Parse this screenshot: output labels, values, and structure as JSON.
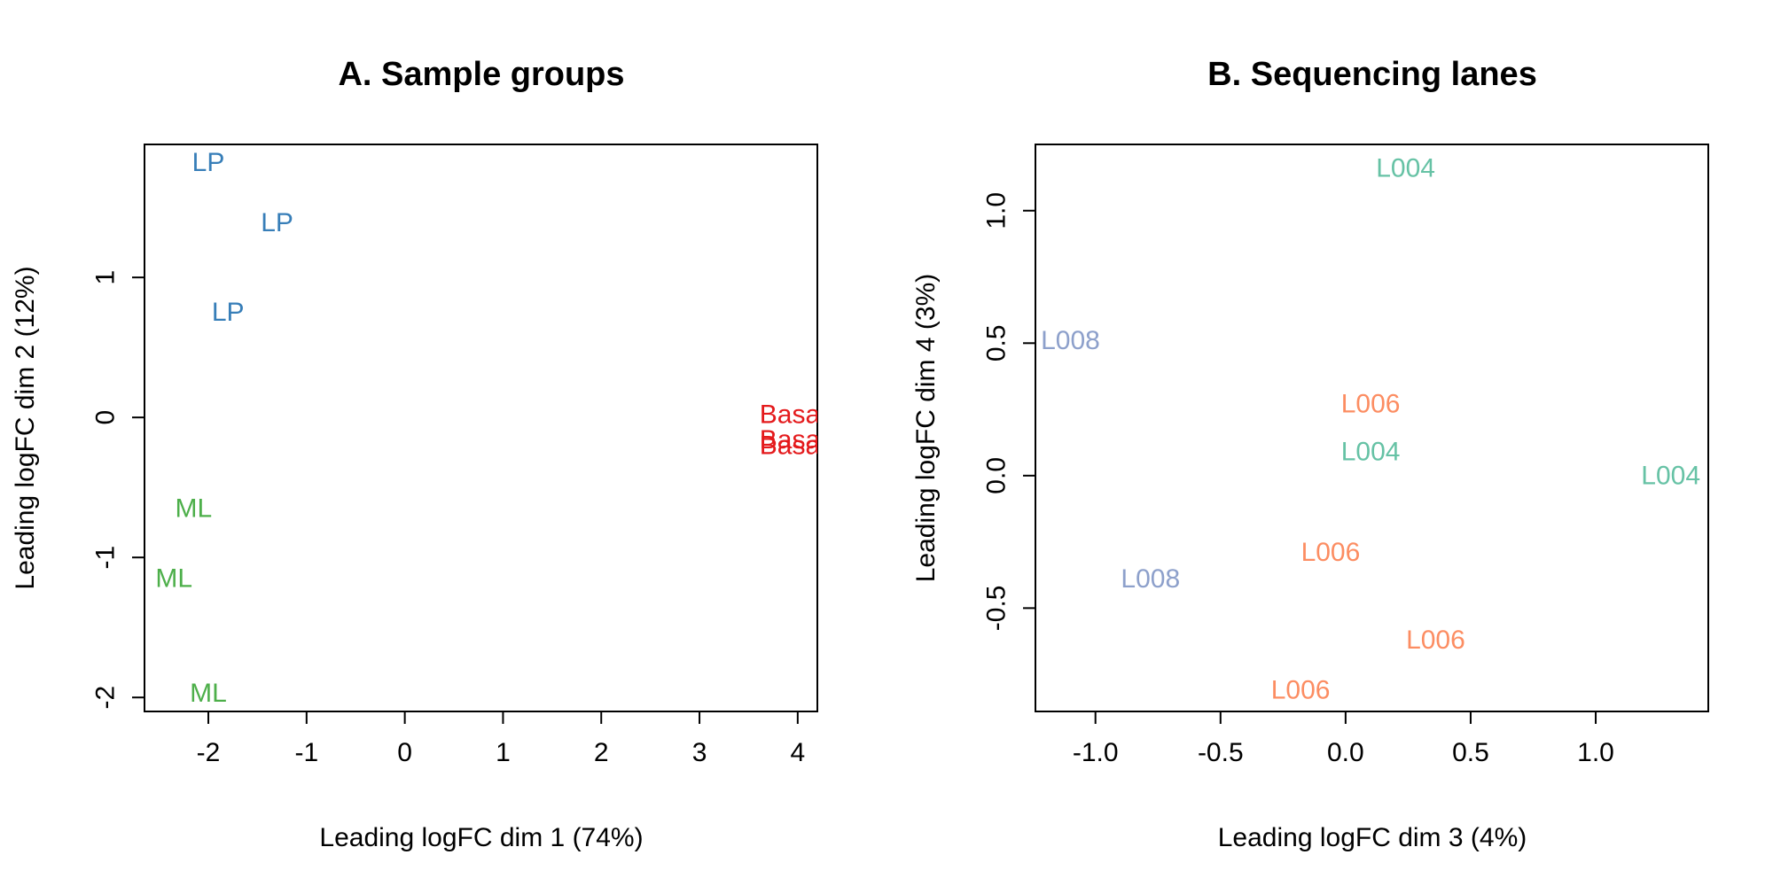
{
  "chart_data": [
    {
      "type": "scatter",
      "title": "A. Sample groups",
      "xlabel": "Leading logFC dim 1 (74%)",
      "ylabel": "Leading logFC dim 2 (12%)",
      "xlim": [
        -2.65,
        4.2
      ],
      "ylim": [
        -2.1,
        1.95
      ],
      "xticks": [
        -2,
        -1,
        0,
        1,
        2,
        3,
        4
      ],
      "xtick_labels": [
        "-2",
        "-1",
        "0",
        "1",
        "2",
        "3",
        "4"
      ],
      "yticks": [
        -2,
        -1,
        0,
        1
      ],
      "ytick_labels": [
        "-2",
        "-1",
        "0",
        "1"
      ],
      "grid": false,
      "points": [
        {
          "label": "LP",
          "x": -2.0,
          "y": 1.82,
          "color": "#377EB8"
        },
        {
          "label": "LP",
          "x": -1.3,
          "y": 1.39,
          "color": "#377EB8"
        },
        {
          "label": "LP",
          "x": -1.8,
          "y": 0.75,
          "color": "#377EB8"
        },
        {
          "label": "Basal",
          "x": 3.95,
          "y": 0.02,
          "color": "#E41A1C"
        },
        {
          "label": "Basal",
          "x": 3.95,
          "y": -0.16,
          "color": "#E41A1C"
        },
        {
          "label": "Basal",
          "x": 3.95,
          "y": -0.2,
          "color": "#E41A1C"
        },
        {
          "label": "ML",
          "x": -2.15,
          "y": -0.65,
          "color": "#4DAF4A"
        },
        {
          "label": "ML",
          "x": -2.35,
          "y": -1.15,
          "color": "#4DAF4A"
        },
        {
          "label": "ML",
          "x": -2.0,
          "y": -1.97,
          "color": "#4DAF4A"
        }
      ]
    },
    {
      "type": "scatter",
      "title": "B. Sequencing lanes",
      "xlabel": "Leading logFC dim 3 (4%)",
      "ylabel": "Leading logFC dim 4 (3%)",
      "xlim": [
        -1.24,
        1.45
      ],
      "ylim": [
        -0.89,
        1.25
      ],
      "xticks": [
        -1.0,
        -0.5,
        0.0,
        0.5,
        1.0
      ],
      "xtick_labels": [
        "-1.0",
        "-0.5",
        "0.0",
        "0.5",
        "1.0"
      ],
      "yticks": [
        -0.5,
        0.0,
        0.5,
        1.0
      ],
      "ytick_labels": [
        "-0.5",
        "0.0",
        "0.5",
        "1.0"
      ],
      "grid": false,
      "points": [
        {
          "label": "L004",
          "x": 0.24,
          "y": 1.16,
          "color": "#66C2A5"
        },
        {
          "label": "L008",
          "x": -1.1,
          "y": 0.51,
          "color": "#8DA0CB"
        },
        {
          "label": "L006",
          "x": 0.1,
          "y": 0.27,
          "color": "#FC8D62"
        },
        {
          "label": "L004",
          "x": 0.1,
          "y": 0.09,
          "color": "#66C2A5"
        },
        {
          "label": "L004",
          "x": 1.3,
          "y": 0.0,
          "color": "#66C2A5"
        },
        {
          "label": "L006",
          "x": -0.06,
          "y": -0.29,
          "color": "#FC8D62"
        },
        {
          "label": "L008",
          "x": -0.78,
          "y": -0.39,
          "color": "#8DA0CB"
        },
        {
          "label": "L006",
          "x": 0.36,
          "y": -0.62,
          "color": "#FC8D62"
        },
        {
          "label": "L006",
          "x": -0.18,
          "y": -0.81,
          "color": "#FC8D62"
        }
      ]
    }
  ]
}
